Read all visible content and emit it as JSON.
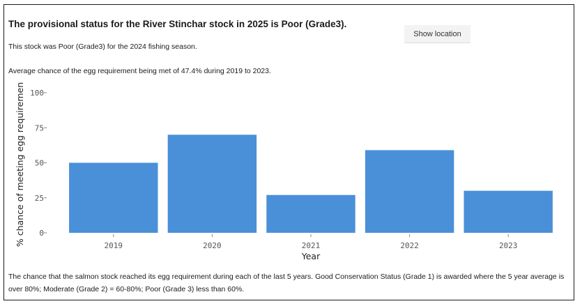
{
  "header": {
    "title": "The provisional status for the River Stinchar stock in 2025 is Poor (Grade3).",
    "show_location_label": "Show location",
    "previous_status": "This stock was Poor (Grade3) for the 2024 fishing season.",
    "average_text": "Average chance of the egg requirement being met of 47.4% during 2019 to 2023."
  },
  "chart_data": {
    "type": "bar",
    "categories": [
      "2019",
      "2020",
      "2021",
      "2022",
      "2023"
    ],
    "values": [
      50,
      70,
      27,
      59,
      30
    ],
    "xlabel": "Year",
    "ylabel": "% chance of meeting egg requiremen",
    "ylim": [
      0,
      100
    ],
    "yticks": [
      0,
      25,
      50,
      75,
      100
    ],
    "grid": false,
    "bar_color": "#4a90d9"
  },
  "footer": {
    "description": "The chance that the salmon stock reached its egg requirement during each of the last 5 years. Good Conservation Status (Grade 1) is awarded where the 5 year average is over 80%; Moderate (Grade 2) = 60-80%; Poor (Grade 3) less than 60%."
  }
}
